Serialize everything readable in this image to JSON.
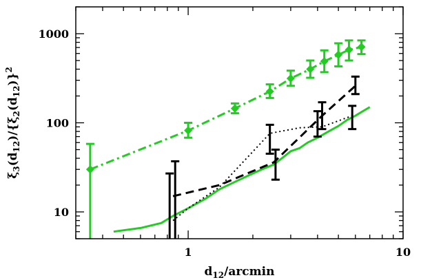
{
  "chart_data": {
    "type": "line",
    "title": "",
    "x_scale": "log",
    "y_scale": "log",
    "xlim": [
      0.3,
      10
    ],
    "ylim": [
      5,
      2000
    ],
    "grid": false,
    "legend": "none",
    "x_ticks": [
      {
        "value": 1,
        "label": "1"
      },
      {
        "value": 10,
        "label": "10"
      }
    ],
    "y_ticks": [
      {
        "value": 10,
        "label": "10"
      },
      {
        "value": 100,
        "label": "100"
      },
      {
        "value": 1000,
        "label": "1000"
      }
    ],
    "xlabel": {
      "base": "d",
      "sub": "12",
      "rest": "/arcmin"
    },
    "ylabel": {
      "parts": [
        {
          "t": "ξ",
          "s": "3"
        },
        {
          "t": "(d",
          "s": "12"
        },
        {
          "t": ")/{ξ",
          "s": "2"
        },
        {
          "t": "(d",
          "s": "12"
        },
        {
          "t": ")}",
          "sup": "2"
        }
      ]
    },
    "series": [
      {
        "style": "dash-dot",
        "color": "#22cc22",
        "marker": "diamond",
        "width": 3,
        "x": [
          0.35,
          1.0,
          1.65,
          2.4,
          3.0,
          3.7,
          4.3,
          5.0,
          5.6,
          6.4
        ],
        "y": [
          30,
          82,
          145,
          225,
          315,
          400,
          490,
          580,
          660,
          710
        ]
      },
      {
        "style": "solid",
        "color": "#22cc22",
        "width": 3,
        "x": [
          0.45,
          0.6,
          0.75,
          0.85,
          1.0,
          1.2,
          1.4,
          1.6,
          1.8,
          2.0,
          2.2,
          2.5,
          2.8,
          3.0,
          3.3,
          3.6,
          4.0,
          4.5,
          5.0,
          5.5,
          6.0,
          6.5,
          7.0
        ],
        "y": [
          6,
          6.6,
          7.5,
          9,
          11,
          14,
          18,
          21,
          24,
          27,
          30,
          34,
          42,
          48,
          52,
          60,
          68,
          80,
          92,
          108,
          120,
          135,
          150
        ]
      },
      {
        "style": "dashed",
        "color": "#000000",
        "width": 3,
        "x": [
          0.85,
          1.4,
          2.5,
          4.2,
          6.0
        ],
        "y": [
          15,
          20,
          36,
          120,
          260
        ]
      },
      {
        "style": "dotted",
        "color": "#000000",
        "width": 2,
        "x": [
          0.85,
          1.0,
          1.4,
          2.4,
          3.3,
          4.2,
          5.8
        ],
        "y": [
          8,
          11,
          19,
          76,
          88,
          90,
          120
        ]
      }
    ],
    "error_bars": [
      {
        "color": "#22cc22",
        "x": 0.35,
        "lo": 5,
        "hi": 58
      },
      {
        "color": "#22cc22",
        "x": 1.0,
        "lo": 68,
        "hi": 100
      },
      {
        "color": "#22cc22",
        "x": 1.65,
        "lo": 128,
        "hi": 165
      },
      {
        "color": "#22cc22",
        "x": 2.4,
        "lo": 190,
        "hi": 270
      },
      {
        "color": "#22cc22",
        "x": 3.0,
        "lo": 260,
        "hi": 385
      },
      {
        "color": "#22cc22",
        "x": 3.7,
        "lo": 320,
        "hi": 500
      },
      {
        "color": "#22cc22",
        "x": 4.3,
        "lo": 370,
        "hi": 650
      },
      {
        "color": "#22cc22",
        "x": 5.0,
        "lo": 430,
        "hi": 780
      },
      {
        "color": "#22cc22",
        "x": 5.6,
        "lo": 500,
        "hi": 840
      },
      {
        "color": "#22cc22",
        "x": 6.4,
        "lo": 590,
        "hi": 840
      },
      {
        "color": "#000000",
        "x": 0.82,
        "lo": 5,
        "hi": 27
      },
      {
        "color": "#000000",
        "x": 0.87,
        "lo": 5,
        "hi": 37
      },
      {
        "color": "#000000",
        "x": 2.4,
        "lo": 45,
        "hi": 95
      },
      {
        "color": "#000000",
        "x": 2.55,
        "lo": 23,
        "hi": 50
      },
      {
        "color": "#000000",
        "x": 4.0,
        "lo": 70,
        "hi": 135
      },
      {
        "color": "#000000",
        "x": 4.2,
        "lo": 85,
        "hi": 170
      },
      {
        "color": "#000000",
        "x": 5.8,
        "lo": 85,
        "hi": 155
      },
      {
        "color": "#000000",
        "x": 6.0,
        "lo": 210,
        "hi": 330
      }
    ]
  }
}
